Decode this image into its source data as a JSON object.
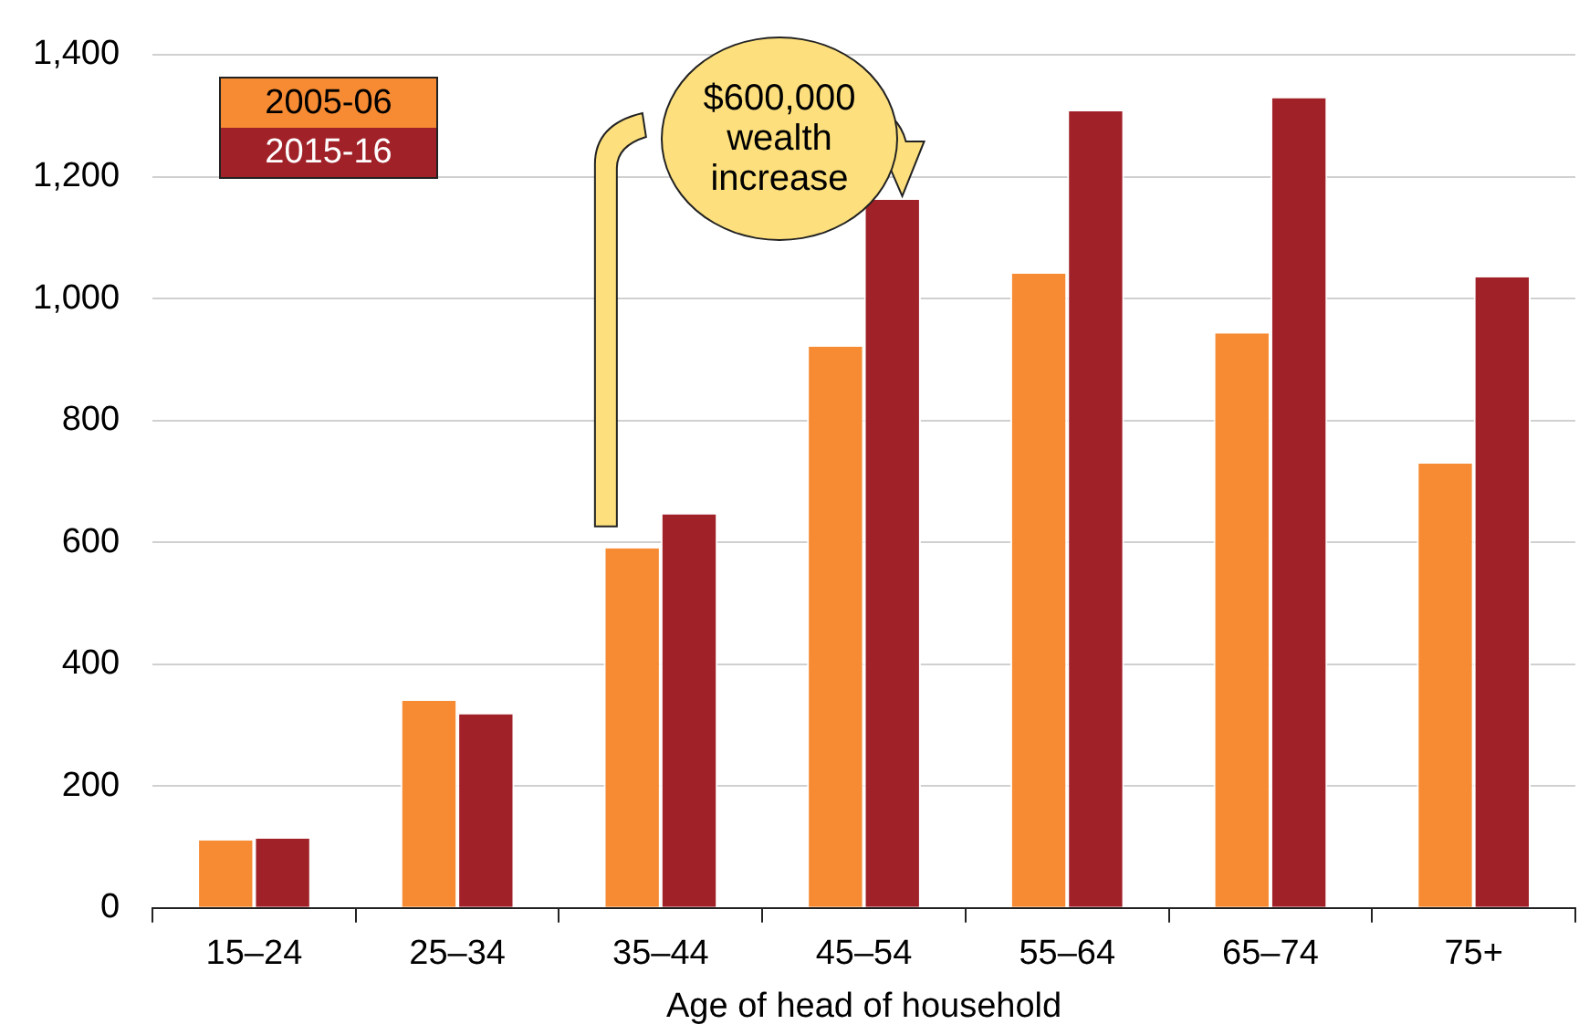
{
  "chart_data": {
    "type": "bar",
    "xlabel": "Age of head of household",
    "categories": [
      "15–24",
      "25–34",
      "35–44",
      "45–54",
      "55–64",
      "65–74",
      "75+"
    ],
    "series": [
      {
        "name": "2005-06",
        "color": "#f68b33",
        "values": [
          111,
          340,
          590,
          921,
          1041,
          943,
          729
        ]
      },
      {
        "name": "2015-16",
        "color": "#a02128",
        "values": [
          114,
          318,
          646,
          1162,
          1307,
          1329,
          1035
        ]
      }
    ],
    "ylim": [
      0,
      1400
    ],
    "yticks": [
      0,
      200,
      400,
      600,
      800,
      {
        "value": 1000,
        "label": "1,000"
      },
      {
        "value": 1200,
        "label": "1,200"
      },
      {
        "value": 1400,
        "label": "1,400"
      }
    ],
    "grid": "y",
    "legend": "top left",
    "annotations": [
      "$600,000 wealth increase"
    ]
  }
}
